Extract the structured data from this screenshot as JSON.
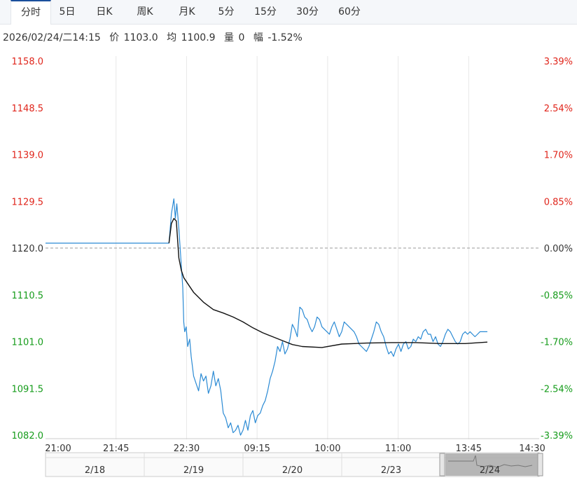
{
  "tabs": [
    {
      "label": "分时",
      "active": true
    },
    {
      "label": "5日",
      "active": false
    },
    {
      "label": "日K",
      "active": false
    },
    {
      "label": "周K",
      "active": false
    },
    {
      "label": "月K",
      "active": false
    },
    {
      "label": "5分",
      "active": false
    },
    {
      "label": "15分",
      "active": false
    },
    {
      "label": "30分",
      "active": false
    },
    {
      "label": "60分",
      "active": false
    }
  ],
  "info": {
    "datetime": "2026/02/24/二14:15",
    "price_label": "价",
    "price": "1103.0",
    "avg_label": "均",
    "avg": "1100.9",
    "volume_label": "量",
    "volume": "0",
    "range_label": "幅",
    "range": "-1.52%"
  },
  "colors": {
    "up": "#e0251b",
    "down": "#169c1b",
    "price_line": "#2a8ad4",
    "avg_line": "#111111",
    "grid": "#e8e8e8"
  },
  "chart_data": {
    "type": "line",
    "ylim": [
      1082.0,
      1158.0
    ],
    "base": 1120.0,
    "y_ticks_left": [
      "1158.0",
      "1148.5",
      "1139.0",
      "1129.5",
      "1120.0",
      "1110.5",
      "1101.0",
      "1091.5",
      "1082.0"
    ],
    "y_ticks_right": [
      "3.39%",
      "2.54%",
      "1.70%",
      "0.85%",
      "0.00%",
      "-0.85%",
      "-1.70%",
      "-2.54%",
      "-3.39%"
    ],
    "x_ticks": [
      "21:00",
      "21:45",
      "22:30",
      "09:15",
      "10:00",
      "11:00",
      "13:45",
      "14:30"
    ],
    "grid": true,
    "session_count": 10,
    "series": [
      {
        "key": "price",
        "x": [
          0,
          2.5,
          2.55,
          2.6,
          2.63,
          2.66,
          2.7,
          2.74,
          2.78,
          2.8,
          2.82,
          2.85,
          2.88,
          2.92,
          2.95,
          3.0,
          3.05,
          3.1,
          3.15,
          3.2,
          3.25,
          3.3,
          3.35,
          3.4,
          3.45,
          3.5,
          3.55,
          3.6,
          3.65,
          3.7,
          3.75,
          3.8,
          3.85,
          3.9,
          3.95,
          4.0,
          4.05,
          4.1,
          4.15,
          4.2,
          4.25,
          4.3,
          4.35,
          4.4,
          4.45,
          4.5,
          4.55,
          4.6,
          4.65,
          4.7,
          4.75,
          4.8,
          4.85,
          4.9,
          4.95,
          5.0,
          5.05,
          5.1,
          5.15,
          5.2,
          5.25,
          5.3,
          5.35,
          5.4,
          5.45,
          5.5,
          5.55,
          5.6,
          5.65,
          5.7,
          5.75,
          5.8,
          5.85,
          5.9,
          5.95,
          6.0,
          6.05,
          6.1,
          6.15,
          6.2,
          6.25,
          6.3,
          6.35,
          6.4,
          6.45,
          6.5,
          6.55,
          6.6,
          6.65,
          6.7,
          6.75,
          6.8,
          6.85,
          6.9,
          6.95,
          7.0,
          7.05,
          7.1,
          7.15,
          7.2,
          7.25,
          7.3,
          7.35,
          7.4,
          7.45,
          7.5,
          7.55,
          7.6,
          7.65,
          7.7,
          7.75,
          7.8,
          7.85,
          7.9,
          7.95,
          8.0,
          8.05,
          8.1,
          8.15,
          8.2,
          8.25,
          8.3,
          8.35,
          8.4,
          8.45,
          8.5,
          8.55,
          8.6,
          8.65,
          8.7,
          8.75,
          8.8,
          8.85,
          8.9,
          8.95
        ],
        "values": [
          1121.0,
          1121.0,
          1127.0,
          1130.0,
          1126.0,
          1129.0,
          1124.0,
          1118.0,
          1112.0,
          1105.0,
          1103.0,
          1104.0,
          1100.0,
          1101.5,
          1098.0,
          1094.0,
          1092.5,
          1091.0,
          1094.5,
          1093.0,
          1094.0,
          1090.5,
          1092.0,
          1095.0,
          1092.0,
          1093.5,
          1091.0,
          1086.5,
          1085.5,
          1083.5,
          1084.5,
          1082.5,
          1083.0,
          1084.0,
          1082.0,
          1083.0,
          1085.0,
          1083.0,
          1086.0,
          1087.0,
          1084.5,
          1086.0,
          1086.5,
          1088.0,
          1089.0,
          1091.0,
          1093.5,
          1095.0,
          1097.0,
          1100.0,
          1099.0,
          1101.0,
          1098.5,
          1099.5,
          1101.5,
          1104.5,
          1103.5,
          1102.0,
          1108.0,
          1107.5,
          1106.0,
          1105.5,
          1104.0,
          1103.0,
          1104.0,
          1106.0,
          1105.5,
          1104.0,
          1103.5,
          1103.0,
          1102.5,
          1104.0,
          1105.0,
          1103.5,
          1102.0,
          1103.0,
          1105.0,
          1104.5,
          1104.0,
          1103.5,
          1103.0,
          1102.0,
          1100.5,
          1100.0,
          1099.5,
          1099.0,
          1100.0,
          1101.5,
          1103.0,
          1105.0,
          1104.5,
          1103.0,
          1102.0,
          1100.0,
          1098.5,
          1099.0,
          1098.0,
          1099.5,
          1100.5,
          1099.0,
          1100.5,
          1101.0,
          1099.5,
          1100.0,
          1101.5,
          1101.0,
          1102.0,
          1101.5,
          1103.0,
          1103.5,
          1102.5,
          1102.5,
          1101.0,
          1102.0,
          1100.5,
          1100.0,
          1101.0,
          1102.5,
          1103.5,
          1103.0,
          1102.0,
          1101.0,
          1100.5,
          1101.0,
          1102.5,
          1103.0,
          1102.5,
          1103.0,
          1102.5,
          1102.0,
          1102.5,
          1103.0,
          1103.0,
          1103.0,
          1103.0
        ]
      },
      {
        "key": "avg",
        "x": [
          2.5,
          2.55,
          2.6,
          2.65,
          2.7,
          2.75,
          2.8,
          2.9,
          3.0,
          3.2,
          3.4,
          3.6,
          3.8,
          4.0,
          4.2,
          4.4,
          4.6,
          4.8,
          5.0,
          5.2,
          5.6,
          6.0,
          6.5,
          7.0,
          7.5,
          8.0,
          8.5,
          8.95
        ],
        "values": [
          1121.0,
          1125.0,
          1126.0,
          1125.5,
          1118.0,
          1115.5,
          1114.0,
          1112.5,
          1111.0,
          1109.0,
          1107.5,
          1106.8,
          1106.0,
          1105.0,
          1103.8,
          1102.8,
          1102.0,
          1101.2,
          1100.4,
          1100.0,
          1099.8,
          1100.5,
          1100.7,
          1100.8,
          1100.8,
          1100.6,
          1100.6,
          1100.9
        ]
      }
    ]
  },
  "navigator": {
    "dates": [
      "2/18",
      "2/19",
      "2/20",
      "2/23",
      "2/24"
    ]
  }
}
